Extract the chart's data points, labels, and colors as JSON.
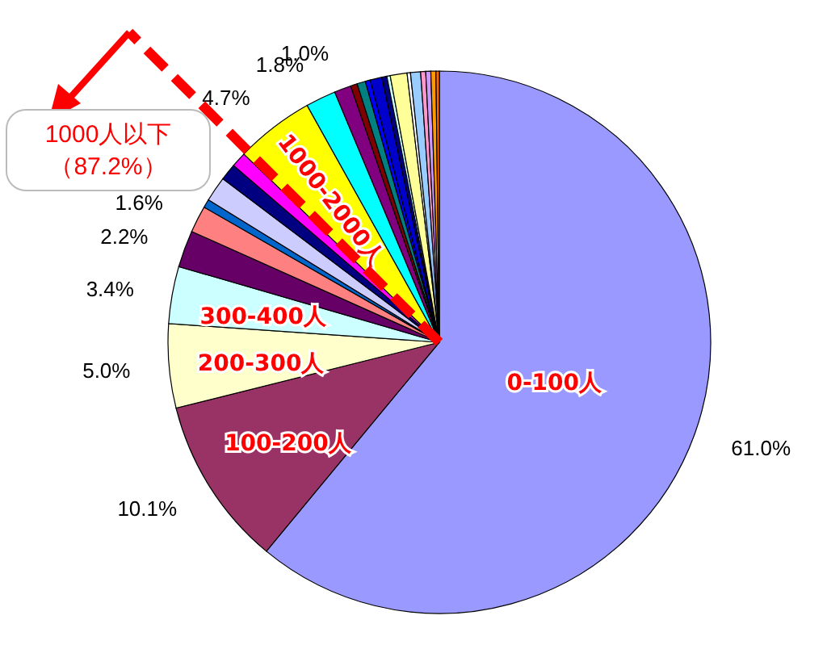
{
  "chart_data": {
    "type": "pie",
    "categories": [
      "0-100人",
      "100-200人",
      "200-300人",
      "300-400人",
      null,
      null,
      null,
      null,
      null,
      null,
      "1000-2000人",
      null,
      null,
      null,
      null,
      null,
      null,
      null,
      null,
      null,
      null,
      null,
      null,
      null,
      null,
      null
    ],
    "values": [
      61.0,
      10.1,
      5.0,
      3.4,
      2.2,
      1.6,
      0.5,
      1.5,
      1.0,
      0.9,
      4.7,
      1.8,
      1.0,
      0.4,
      0.5,
      0.3,
      0.7,
      0.3,
      0.2,
      1.0,
      0.2,
      0.6,
      0.3,
      0.3,
      0.3,
      0.2
    ],
    "colors": [
      "#9999ff",
      "#993366",
      "#ffffcc",
      "#ccffff",
      "#660066",
      "#ff8080",
      "#0066cc",
      "#ccccff",
      "#000080",
      "#ff00ff",
      "#ffff00",
      "#00ffff",
      "#800080",
      "#800000",
      "#008080",
      "#0000ff",
      "#0000cc",
      "#000080",
      "#ccffff",
      "#ffff99",
      "#ffffff",
      "#99ccff",
      "#ff99cc",
      "#cc99ff",
      "#ff9900",
      "#ff6600"
    ],
    "value_labels": [
      "61.0%",
      "10.1%",
      "5.0%",
      "3.4%",
      "2.2%",
      "1.6%",
      null,
      null,
      null,
      null,
      "4.7%",
      "1.8%",
      "1.0%",
      null,
      null,
      null,
      null,
      null,
      null,
      null,
      null,
      null,
      null,
      null,
      null,
      null
    ],
    "annotations": [
      "1000人以下（87.2%）"
    ]
  }
}
